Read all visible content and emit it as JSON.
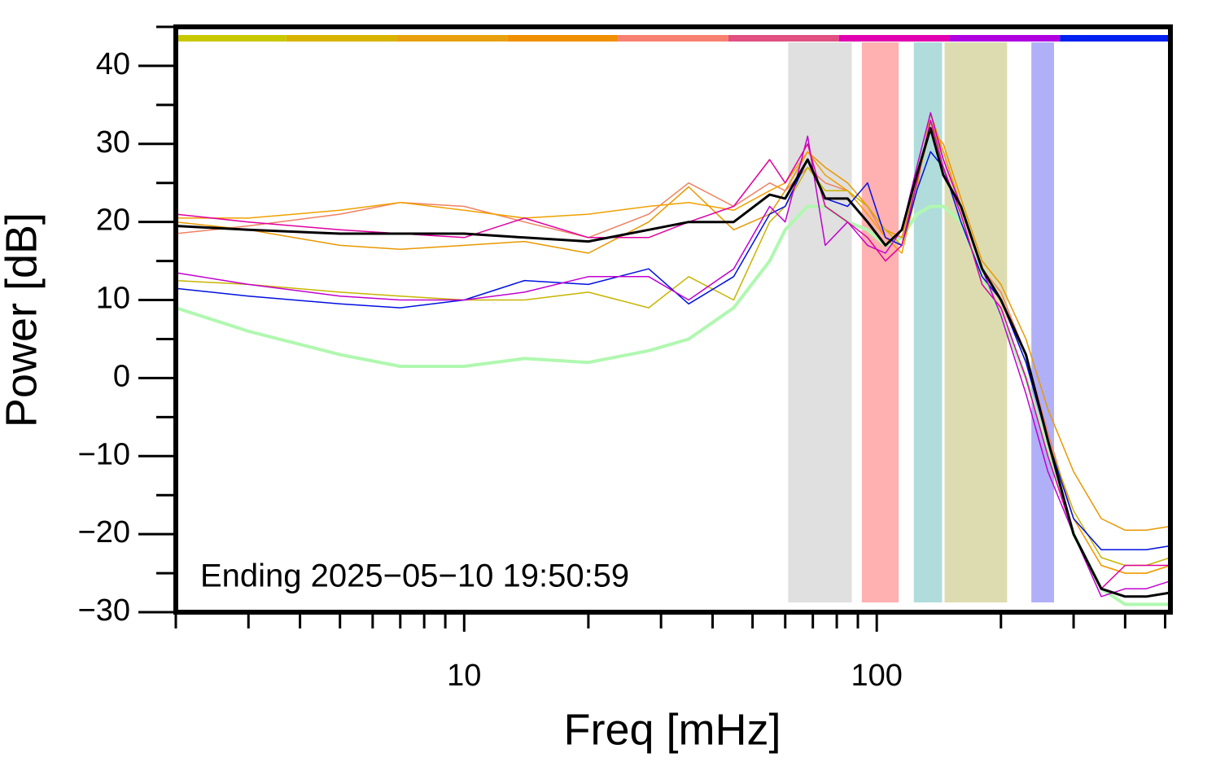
{
  "chart_data": {
    "type": "line",
    "x_label": "Freq [mHz]",
    "y_label": "Power [dB]",
    "annotation": "Ending 2025−05−10 19:50:59",
    "log_x": true,
    "xlim": [
      2,
      515
    ],
    "ylim": [
      -30,
      45
    ],
    "xticks": [
      10,
      100
    ],
    "xminorticks": [
      2,
      3,
      4,
      5,
      6,
      7,
      8,
      9,
      20,
      30,
      40,
      50,
      60,
      70,
      80,
      90,
      200,
      300,
      400,
      500
    ],
    "yticks": [
      {
        "value": -30,
        "label": "−30"
      },
      {
        "value": -20,
        "label": "−20"
      },
      {
        "value": -10,
        "label": "−10"
      },
      0,
      10,
      20,
      30,
      40
    ],
    "yminorticks": [
      -25,
      -15,
      -5,
      5,
      15,
      25,
      35,
      45
    ],
    "bands": [
      {
        "x": [
          61,
          87
        ],
        "color": "#e0e0e0"
      },
      {
        "x": [
          92,
          113
        ],
        "color": "#ffb0b0"
      },
      {
        "x": [
          123,
          144
        ],
        "color": "#b0dcdc"
      },
      {
        "x": [
          146,
          207
        ],
        "color": "#dcdcb0"
      },
      {
        "x": [
          237,
          269
        ],
        "color": "#b0b0f8"
      }
    ],
    "colorbar": [
      "#c8c800",
      "#d8b400",
      "#e8a010",
      "#f09000",
      "#f88070",
      "#e05080",
      "#e000b0",
      "#b000e0",
      "#0020f0"
    ],
    "x": [
      2,
      3,
      5,
      7,
      10,
      14,
      20,
      28,
      35,
      45,
      55,
      60,
      68,
      75,
      85,
      95,
      105,
      115,
      125,
      135,
      145,
      160,
      180,
      200,
      230,
      260,
      300,
      350,
      400,
      450,
      515
    ],
    "series": [
      {
        "color": "#b0f8b0",
        "width": 4,
        "values": [
          9,
          6,
          3,
          1.5,
          1.5,
          2.5,
          2,
          3.5,
          5,
          9,
          15,
          19,
          22,
          22,
          20,
          19,
          17,
          18,
          21,
          22,
          22,
          20,
          13,
          8,
          0,
          -9,
          -20,
          -27,
          -29,
          -29,
          -29
        ]
      },
      {
        "color": "#e89800",
        "width": 1.5,
        "values": [
          20,
          19,
          17,
          16.5,
          17,
          17.5,
          16,
          20,
          24.5,
          19,
          21,
          24,
          29,
          27,
          25,
          22,
          19,
          18,
          25,
          32,
          30,
          23,
          15,
          12,
          5,
          -4,
          -12,
          -18,
          -19.5,
          -19.5,
          -19
        ]
      },
      {
        "color": "#f08060",
        "width": 1.5,
        "values": [
          18.5,
          19.5,
          21,
          22.5,
          22,
          20,
          18,
          21,
          25,
          22,
          25,
          24,
          27,
          25,
          24,
          22,
          18,
          17,
          25,
          33,
          29,
          22,
          14,
          11,
          3,
          -7,
          -18,
          -24,
          -25,
          -25,
          -24
        ]
      },
      {
        "color": "#f0a000",
        "width": 1.5,
        "values": [
          20.5,
          20.5,
          21.5,
          22.5,
          21.5,
          20.5,
          21,
          22,
          22.5,
          21.5,
          24,
          25,
          29,
          26,
          24,
          21,
          18,
          16,
          24,
          34,
          29,
          22,
          14,
          10,
          3,
          -8,
          -18,
          -24,
          -25,
          -25,
          -24
        ]
      },
      {
        "color": "#c8b400",
        "width": 1.5,
        "values": [
          12.5,
          12,
          11,
          10.5,
          10,
          10,
          11,
          9,
          13,
          10,
          20,
          22,
          27,
          24,
          24,
          22,
          19,
          17,
          25,
          33,
          28,
          22,
          14,
          10,
          2,
          -8,
          -17,
          -23,
          -24,
          -24,
          -23
        ]
      },
      {
        "color": "#0010e0",
        "width": 1.5,
        "values": [
          11.5,
          10.5,
          9.5,
          9,
          10,
          12.5,
          12,
          14,
          9.5,
          13,
          21,
          22,
          28,
          23,
          22,
          25,
          18,
          17,
          24,
          29,
          27,
          20,
          13,
          10,
          2,
          -8,
          -18,
          -22,
          -22,
          -22,
          -21.5
        ]
      },
      {
        "color": "#c000d0",
        "width": 1.5,
        "values": [
          13.5,
          12,
          10.5,
          10,
          10,
          11,
          13,
          13,
          10,
          14,
          22,
          20,
          31,
          17,
          20,
          17,
          16,
          19,
          27,
          34,
          28,
          22,
          14,
          8,
          -2,
          -12,
          -20,
          -28,
          -27,
          -27,
          -26
        ]
      },
      {
        "color": "#e000a0",
        "width": 1.5,
        "values": [
          21,
          20,
          19,
          18.5,
          18,
          20.5,
          18,
          18,
          20,
          22,
          28,
          25,
          30,
          22,
          20,
          18,
          15,
          17,
          25,
          33,
          27,
          21,
          12,
          9,
          0,
          -10,
          -20,
          -27,
          -24,
          -24,
          -24
        ]
      },
      {
        "color": "#000000",
        "width": 3,
        "values": [
          19.5,
          19,
          18.5,
          18.5,
          18.5,
          18,
          17.5,
          19,
          20,
          20,
          23.5,
          23,
          28,
          23,
          23,
          20,
          17,
          19,
          26,
          32,
          26,
          22,
          14,
          10,
          3,
          -8,
          -20,
          -27,
          -28,
          -28,
          -27.5
        ]
      }
    ]
  }
}
